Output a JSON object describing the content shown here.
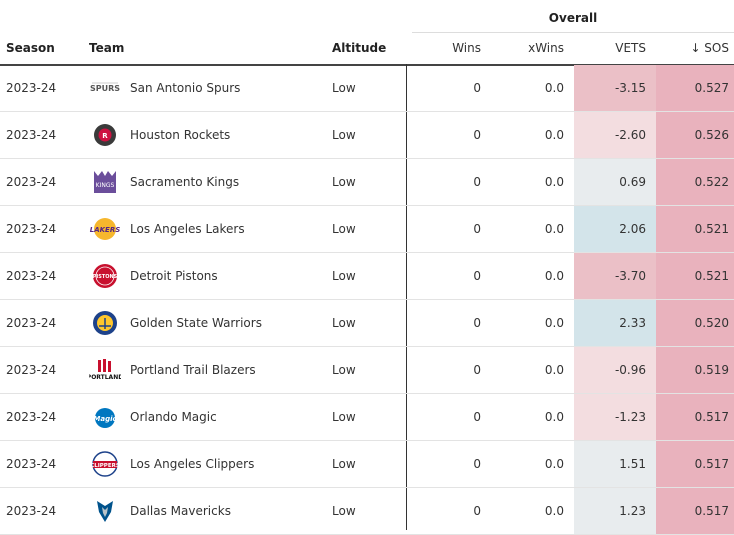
{
  "header": {
    "group_label": "Overall",
    "columns": {
      "season": "Season",
      "team": "Team",
      "altitude": "Altitude",
      "wins": "Wins",
      "xwins": "xWins",
      "vets": "VETS",
      "sos": "↓ SOS"
    }
  },
  "colors": {
    "negative_strong": "#ebc0c7",
    "negative_light": "#f3dde0",
    "neutral": "#e8ecee",
    "positive": "#d3e4ea",
    "sos_bg": "#e9b2bd"
  },
  "rows": [
    {
      "season": "2023-24",
      "team": "San Antonio Spurs",
      "logo": "spurs-logo",
      "altitude": "Low",
      "wins": "0",
      "xwins": "0.0",
      "vets": "-3.15",
      "sos": "0.527",
      "vets_tone": "negative_strong"
    },
    {
      "season": "2023-24",
      "team": "Houston Rockets",
      "logo": "rockets-logo",
      "altitude": "Low",
      "wins": "0",
      "xwins": "0.0",
      "vets": "-2.60",
      "sos": "0.526",
      "vets_tone": "negative_light"
    },
    {
      "season": "2023-24",
      "team": "Sacramento Kings",
      "logo": "kings-logo",
      "altitude": "Low",
      "wins": "0",
      "xwins": "0.0",
      "vets": "0.69",
      "sos": "0.522",
      "vets_tone": "neutral"
    },
    {
      "season": "2023-24",
      "team": "Los Angeles Lakers",
      "logo": "lakers-logo",
      "altitude": "Low",
      "wins": "0",
      "xwins": "0.0",
      "vets": "2.06",
      "sos": "0.521",
      "vets_tone": "positive"
    },
    {
      "season": "2023-24",
      "team": "Detroit Pistons",
      "logo": "pistons-logo",
      "altitude": "Low",
      "wins": "0",
      "xwins": "0.0",
      "vets": "-3.70",
      "sos": "0.521",
      "vets_tone": "negative_strong"
    },
    {
      "season": "2023-24",
      "team": "Golden State Warriors",
      "logo": "warriors-logo",
      "altitude": "Low",
      "wins": "0",
      "xwins": "0.0",
      "vets": "2.33",
      "sos": "0.520",
      "vets_tone": "positive"
    },
    {
      "season": "2023-24",
      "team": "Portland Trail Blazers",
      "logo": "blazers-logo",
      "altitude": "Low",
      "wins": "0",
      "xwins": "0.0",
      "vets": "-0.96",
      "sos": "0.519",
      "vets_tone": "negative_light"
    },
    {
      "season": "2023-24",
      "team": "Orlando Magic",
      "logo": "magic-logo",
      "altitude": "Low",
      "wins": "0",
      "xwins": "0.0",
      "vets": "-1.23",
      "sos": "0.517",
      "vets_tone": "negative_light"
    },
    {
      "season": "2023-24",
      "team": "Los Angeles Clippers",
      "logo": "clippers-logo",
      "altitude": "Low",
      "wins": "0",
      "xwins": "0.0",
      "vets": "1.51",
      "sos": "0.517",
      "vets_tone": "neutral"
    },
    {
      "season": "2023-24",
      "team": "Dallas Mavericks",
      "logo": "mavericks-logo",
      "altitude": "Low",
      "wins": "0",
      "xwins": "0.0",
      "vets": "1.23",
      "sos": "0.517",
      "vets_tone": "neutral"
    }
  ]
}
